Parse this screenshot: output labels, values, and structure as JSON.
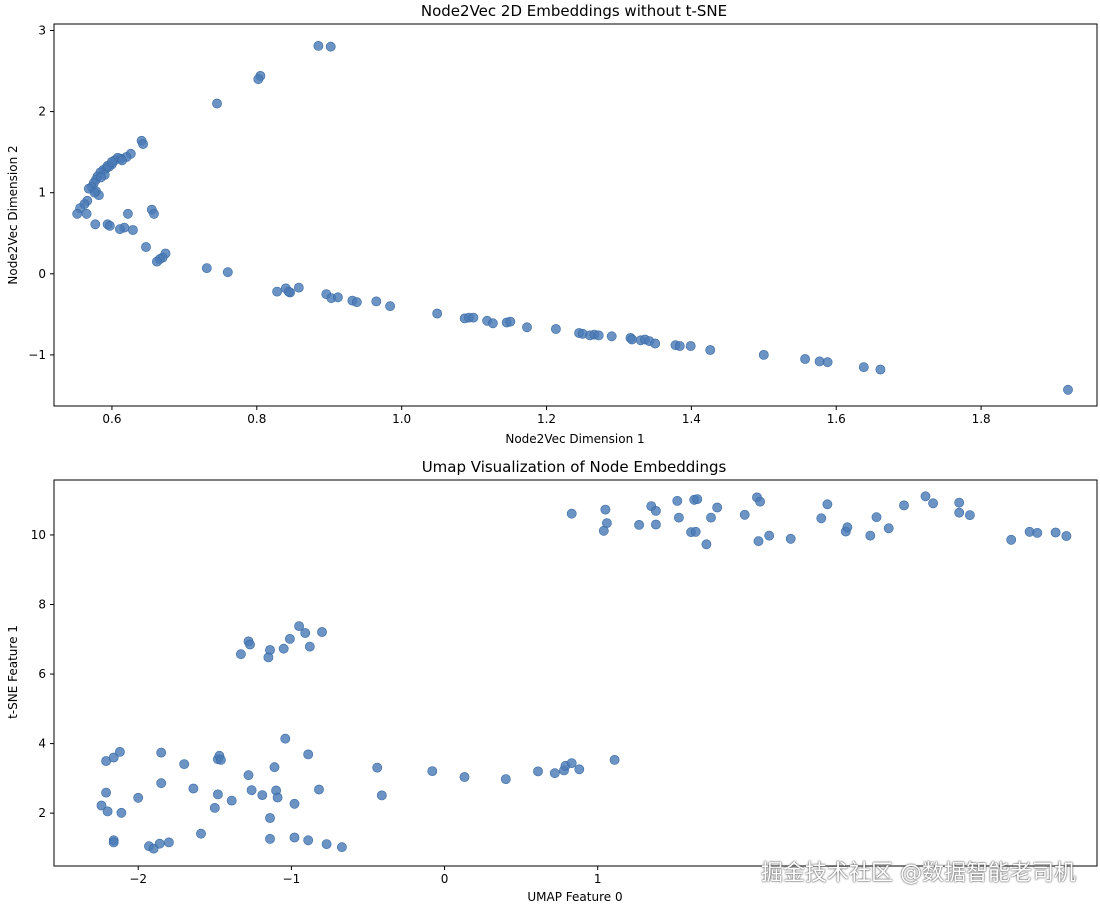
{
  "chart_data": [
    {
      "type": "scatter",
      "title": "Node2Vec 2D Embeddings without t-SNE",
      "xlabel": "Node2Vec Dimension 1",
      "ylabel": "Node2Vec Dimension 2",
      "xlim": [
        0.52,
        1.96
      ],
      "ylim": [
        -1.63,
        3.08
      ],
      "xticks": [
        0.6,
        0.8,
        1.0,
        1.2,
        1.4,
        1.6,
        1.8
      ],
      "xtick_labels": [
        "0.6",
        "0.8",
        "1.0",
        "1.2",
        "1.4",
        "1.6",
        "1.8"
      ],
      "yticks": [
        -1,
        0,
        1,
        2,
        3
      ],
      "ytick_labels": [
        "−1",
        "0",
        "1",
        "2",
        "3"
      ],
      "grid": false,
      "marker_color": "#4a7bb7",
      "points": [
        [
          0.885,
          2.81
        ],
        [
          0.902,
          2.8
        ],
        [
          0.805,
          2.44
        ],
        [
          0.802,
          2.4
        ],
        [
          0.745,
          2.1
        ],
        [
          0.641,
          1.64
        ],
        [
          0.643,
          1.6
        ],
        [
          0.626,
          1.48
        ],
        [
          0.62,
          1.44
        ],
        [
          0.612,
          1.42
        ],
        [
          0.608,
          1.43
        ],
        [
          0.604,
          1.4
        ],
        [
          0.6,
          1.35
        ],
        [
          0.596,
          1.32
        ],
        [
          0.592,
          1.3
        ],
        [
          0.588,
          1.28
        ],
        [
          0.584,
          1.25
        ],
        [
          0.58,
          1.2
        ],
        [
          0.578,
          1.16
        ],
        [
          0.575,
          1.12
        ],
        [
          0.572,
          1.07
        ],
        [
          0.568,
          1.05
        ],
        [
          0.578,
          1.02
        ],
        [
          0.582,
          0.97
        ],
        [
          0.576,
          1.0
        ],
        [
          0.594,
          1.33
        ],
        [
          0.59,
          1.22
        ],
        [
          0.585,
          1.19
        ],
        [
          0.6,
          1.38
        ],
        [
          0.614,
          1.4
        ],
        [
          0.566,
          0.9
        ],
        [
          0.562,
          0.86
        ],
        [
          0.556,
          0.81
        ],
        [
          0.552,
          0.74
        ],
        [
          0.565,
          0.74
        ],
        [
          0.655,
          0.79
        ],
        [
          0.658,
          0.74
        ],
        [
          0.622,
          0.74
        ],
        [
          0.577,
          0.61
        ],
        [
          0.594,
          0.61
        ],
        [
          0.597,
          0.59
        ],
        [
          0.617,
          0.57
        ],
        [
          0.611,
          0.55
        ],
        [
          0.629,
          0.54
        ],
        [
          0.647,
          0.33
        ],
        [
          0.674,
          0.25
        ],
        [
          0.67,
          0.2
        ],
        [
          0.666,
          0.18
        ],
        [
          0.662,
          0.15
        ],
        [
          0.731,
          0.07
        ],
        [
          0.76,
          0.02
        ],
        [
          0.828,
          -0.22
        ],
        [
          0.84,
          -0.18
        ],
        [
          0.846,
          -0.23
        ],
        [
          0.844,
          -0.22
        ],
        [
          0.858,
          -0.17
        ],
        [
          0.896,
          -0.25
        ],
        [
          0.903,
          -0.3
        ],
        [
          0.912,
          -0.29
        ],
        [
          0.932,
          -0.33
        ],
        [
          0.938,
          -0.35
        ],
        [
          0.965,
          -0.34
        ],
        [
          0.984,
          -0.4
        ],
        [
          1.049,
          -0.49
        ],
        [
          1.087,
          -0.55
        ],
        [
          1.093,
          -0.54
        ],
        [
          1.099,
          -0.54
        ],
        [
          1.118,
          -0.58
        ],
        [
          1.126,
          -0.61
        ],
        [
          1.145,
          -0.6
        ],
        [
          1.15,
          -0.59
        ],
        [
          1.173,
          -0.66
        ],
        [
          1.213,
          -0.68
        ],
        [
          1.245,
          -0.73
        ],
        [
          1.25,
          -0.74
        ],
        [
          1.26,
          -0.76
        ],
        [
          1.266,
          -0.75
        ],
        [
          1.272,
          -0.76
        ],
        [
          1.29,
          -0.77
        ],
        [
          1.316,
          -0.79
        ],
        [
          1.318,
          -0.81
        ],
        [
          1.33,
          -0.82
        ],
        [
          1.336,
          -0.81
        ],
        [
          1.342,
          -0.83
        ],
        [
          1.35,
          -0.86
        ],
        [
          1.378,
          -0.88
        ],
        [
          1.384,
          -0.89
        ],
        [
          1.399,
          -0.89
        ],
        [
          1.426,
          -0.94
        ],
        [
          1.5,
          -1.0
        ],
        [
          1.557,
          -1.05
        ],
        [
          1.577,
          -1.08
        ],
        [
          1.588,
          -1.09
        ],
        [
          1.638,
          -1.15
        ],
        [
          1.661,
          -1.18
        ],
        [
          1.92,
          -1.43
        ]
      ]
    },
    {
      "type": "scatter",
      "title": "Umap Visualization of Node Embeddings",
      "xlabel": "UMAP Feature 0",
      "ylabel": "t-SNE Feature 1",
      "xlim": [
        -2.55,
        4.26
      ],
      "ylim": [
        0.48,
        11.58
      ],
      "xticks": [
        -2,
        -1,
        0,
        1
      ],
      "xtick_labels": [
        "−2",
        "−1",
        "0",
        "1"
      ],
      "yticks": [
        2,
        4,
        6,
        8,
        10
      ],
      "ytick_labels": [
        "2",
        "4",
        "6",
        "8",
        "10"
      ],
      "grid": false,
      "marker_color": "#4a7bb7",
      "points": [
        [
          0.83,
          10.61
        ],
        [
          1.05,
          10.73
        ],
        [
          1.06,
          10.34
        ],
        [
          1.04,
          10.12
        ],
        [
          1.27,
          10.29
        ],
        [
          1.35,
          10.83
        ],
        [
          1.38,
          10.69
        ],
        [
          1.38,
          10.3
        ],
        [
          1.52,
          10.98
        ],
        [
          1.53,
          10.5
        ],
        [
          1.61,
          10.08
        ],
        [
          1.63,
          11.01
        ],
        [
          1.64,
          10.09
        ],
        [
          1.65,
          11.03
        ],
        [
          1.71,
          9.73
        ],
        [
          1.74,
          10.5
        ],
        [
          1.78,
          10.79
        ],
        [
          1.96,
          10.58
        ],
        [
          2.04,
          11.08
        ],
        [
          2.06,
          10.96
        ],
        [
          2.05,
          9.82
        ],
        [
          2.12,
          9.98
        ],
        [
          2.26,
          9.89
        ],
        [
          2.46,
          10.48
        ],
        [
          2.5,
          10.88
        ],
        [
          2.62,
          10.1
        ],
        [
          2.63,
          10.22
        ],
        [
          2.78,
          9.98
        ],
        [
          2.82,
          10.51
        ],
        [
          2.9,
          10.19
        ],
        [
          3.0,
          10.85
        ],
        [
          3.14,
          11.11
        ],
        [
          3.19,
          10.91
        ],
        [
          3.36,
          10.93
        ],
        [
          3.36,
          10.64
        ],
        [
          3.43,
          10.57
        ],
        [
          3.7,
          9.86
        ],
        [
          3.82,
          10.09
        ],
        [
          3.87,
          10.06
        ],
        [
          3.99,
          10.07
        ],
        [
          4.06,
          9.97
        ],
        [
          -1.33,
          6.57
        ],
        [
          -1.28,
          6.94
        ],
        [
          -1.27,
          6.85
        ],
        [
          -1.14,
          6.69
        ],
        [
          -1.15,
          6.48
        ],
        [
          -1.05,
          6.73
        ],
        [
          -1.01,
          7.01
        ],
        [
          -0.95,
          7.38
        ],
        [
          -0.91,
          7.18
        ],
        [
          -0.88,
          6.79
        ],
        [
          -0.8,
          7.21
        ],
        [
          -2.21,
          3.5
        ],
        [
          -2.16,
          3.6
        ],
        [
          -2.12,
          3.76
        ],
        [
          -1.85,
          3.74
        ],
        [
          -1.7,
          3.41
        ],
        [
          -1.48,
          3.55
        ],
        [
          -1.47,
          3.65
        ],
        [
          -1.46,
          3.53
        ],
        [
          -1.04,
          4.14
        ],
        [
          -0.89,
          3.69
        ],
        [
          -1.28,
          3.09
        ],
        [
          -1.11,
          3.32
        ],
        [
          -0.44,
          3.31
        ],
        [
          -0.08,
          3.21
        ],
        [
          0.13,
          3.04
        ],
        [
          0.4,
          2.98
        ],
        [
          0.61,
          3.2
        ],
        [
          0.72,
          3.15
        ],
        [
          0.78,
          3.23
        ],
        [
          0.79,
          3.36
        ],
        [
          0.83,
          3.44
        ],
        [
          0.88,
          3.26
        ],
        [
          1.11,
          3.53
        ],
        [
          -2.21,
          2.59
        ],
        [
          -2.24,
          2.22
        ],
        [
          -2.2,
          2.05
        ],
        [
          -2.11,
          2.01
        ],
        [
          -2.0,
          2.44
        ],
        [
          -1.85,
          2.86
        ],
        [
          -1.64,
          2.71
        ],
        [
          -1.5,
          2.15
        ],
        [
          -1.48,
          2.54
        ],
        [
          -1.39,
          2.36
        ],
        [
          -1.26,
          2.66
        ],
        [
          -1.19,
          2.52
        ],
        [
          -1.1,
          2.65
        ],
        [
          -1.09,
          2.45
        ],
        [
          -0.98,
          2.27
        ],
        [
          -0.82,
          2.68
        ],
        [
          -0.41,
          2.51
        ],
        [
          -1.14,
          1.86
        ],
        [
          -2.16,
          1.22
        ],
        [
          -2.16,
          1.16
        ],
        [
          -1.93,
          1.05
        ],
        [
          -1.9,
          0.98
        ],
        [
          -1.86,
          1.12
        ],
        [
          -1.8,
          1.16
        ],
        [
          -1.59,
          1.41
        ],
        [
          -1.14,
          1.26
        ],
        [
          -0.98,
          1.3
        ],
        [
          -0.89,
          1.22
        ],
        [
          -0.77,
          1.11
        ],
        [
          -0.67,
          1.02
        ]
      ]
    }
  ],
  "watermark": "掘金技术社区 @数据智能老司机"
}
